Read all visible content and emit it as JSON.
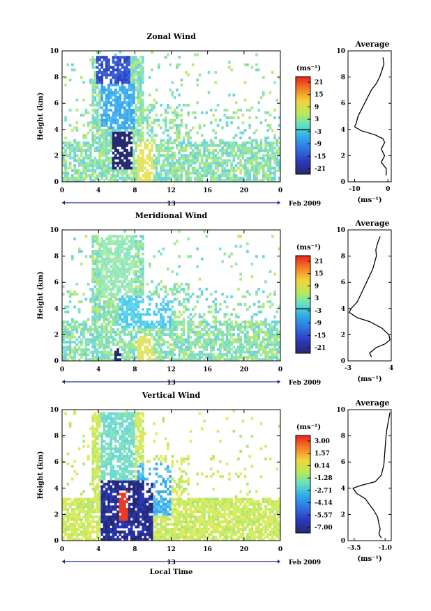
{
  "axes": {
    "ylabel": "Height (km)",
    "xlabel": "Local Time",
    "day_label": "13",
    "date_label": "Feb 2009",
    "unit_label": "(ms⁻¹)",
    "avg_title": "Average"
  },
  "chart_data": [
    {
      "type": "heatmap",
      "title": "Zonal Wind",
      "xlabel": "",
      "ylabel": "Height (km)",
      "xticks": [
        "0",
        "4",
        "8",
        "12",
        "16",
        "20",
        "0"
      ],
      "xlim": [
        0,
        24
      ],
      "ylim": [
        0,
        10
      ],
      "yticks": [
        "0",
        "2",
        "4",
        "6",
        "8",
        "10"
      ],
      "colorbar_unit": "(ms⁻¹)",
      "colorbar_ticks": [
        "21",
        "15",
        "9",
        "3",
        "-3",
        "-9",
        "-15",
        "-21"
      ],
      "colorbar_range": [
        -24,
        24
      ],
      "description_features": [
        "strong westward flow (< -21) near 5-6 LT, 1-4 km",
        "westward jet above 4 km between 3 and 8 LT"
      ]
    },
    {
      "type": "line",
      "title": "Average",
      "xlabel": "(ms⁻¹)",
      "xticks": [
        "-10",
        "0"
      ],
      "xlim": [
        -12,
        1
      ],
      "ylim": [
        0,
        10
      ],
      "yticks": [
        "0",
        "2",
        "4",
        "6",
        "8",
        "10"
      ],
      "series": [
        {
          "x": [
            -1.5,
            -1.2,
            -1.8,
            -2.5,
            -3.5,
            -5,
            -6,
            -7,
            -8,
            -9,
            -9.5,
            -10,
            -8,
            -4,
            -1.5,
            -1,
            -2,
            -1,
            -2,
            -0.5,
            -0.5
          ],
          "y": [
            9.5,
            9.0,
            8.5,
            8.0,
            7.5,
            7.0,
            6.5,
            6.0,
            5.5,
            5.0,
            4.5,
            4.2,
            3.9,
            3.6,
            3.3,
            3.0,
            2.5,
            2.0,
            1.5,
            1.0,
            0.5
          ]
        }
      ]
    },
    {
      "type": "heatmap",
      "title": "Meridional Wind",
      "xlabel": "",
      "ylabel": "Height (km)",
      "xticks": [
        "0",
        "4",
        "8",
        "12",
        "16",
        "20",
        "0"
      ],
      "xlim": [
        0,
        24
      ],
      "ylim": [
        0,
        10
      ],
      "yticks": [
        "0",
        "2",
        "4",
        "6",
        "8",
        "10"
      ],
      "colorbar_unit": "(ms⁻¹)",
      "colorbar_ticks": [
        "21",
        "15",
        "9",
        "3",
        "-3",
        "-9",
        "-15",
        "-21"
      ],
      "colorbar_range": [
        -24,
        24
      ]
    },
    {
      "type": "line",
      "title": "Average",
      "xlabel": "(ms⁻¹)",
      "xticks": [
        "-3",
        "4"
      ],
      "xlim": [
        -3,
        4
      ],
      "ylim": [
        0,
        10
      ],
      "yticks": [
        "0",
        "2",
        "4",
        "6",
        "8",
        "10"
      ],
      "series": [
        {
          "x": [
            2.2,
            1.8,
            1.5,
            1.6,
            1.3,
            1.0,
            0.5,
            0.0,
            -0.5,
            -1.0,
            -1.5,
            -2.5,
            -2.8,
            -1.5,
            0.5,
            2.5,
            3.6,
            3.8,
            3.0,
            1.5,
            0.5,
            0.8
          ],
          "y": [
            9.5,
            9.0,
            8.5,
            8.0,
            7.5,
            7.0,
            6.5,
            6.0,
            5.5,
            5.0,
            4.5,
            4.0,
            3.7,
            3.3,
            3.0,
            2.5,
            2.0,
            1.6,
            1.3,
            1.0,
            0.6,
            0.3
          ]
        }
      ]
    },
    {
      "type": "heatmap",
      "title": "Vertical Wind",
      "xlabel": "Local Time",
      "ylabel": "Height (km)",
      "xticks": [
        "0",
        "4",
        "8",
        "12",
        "16",
        "20",
        "0"
      ],
      "xlim": [
        0,
        24
      ],
      "ylim": [
        0,
        10
      ],
      "yticks": [
        "0",
        "2",
        "4",
        "6",
        "8",
        "10"
      ],
      "colorbar_unit": "(ms⁻¹)",
      "colorbar_ticks": [
        "3.00",
        "1.57",
        "0.14",
        "-1.28",
        "-2.71",
        "-4.14",
        "-5.57",
        "-7.00"
      ],
      "colorbar_range": [
        -7.5,
        3.5
      ]
    },
    {
      "type": "line",
      "title": "Average",
      "xlabel": "(ms⁻¹)",
      "xticks": [
        "-3.5",
        "-1.0"
      ],
      "xlim": [
        -4.0,
        -0.5
      ],
      "ylim": [
        0,
        10
      ],
      "yticks": [
        "0",
        "2",
        "4",
        "6",
        "8",
        "10"
      ],
      "series": [
        {
          "x": [
            -0.6,
            -0.7,
            -0.8,
            -0.9,
            -0.95,
            -1.0,
            -1.05,
            -1.1,
            -1.3,
            -1.8,
            -3.0,
            -3.6,
            -3.3,
            -2.6,
            -2.3,
            -1.9,
            -1.6,
            -1.5,
            -1.4,
            -1.5,
            -1.3
          ],
          "y": [
            9.8,
            9.3,
            8.8,
            8.2,
            7.6,
            7.0,
            6.4,
            5.8,
            5.0,
            4.5,
            4.2,
            4.0,
            3.6,
            3.2,
            2.8,
            2.3,
            1.8,
            1.3,
            0.9,
            0.5,
            0.2
          ]
        }
      ]
    }
  ]
}
